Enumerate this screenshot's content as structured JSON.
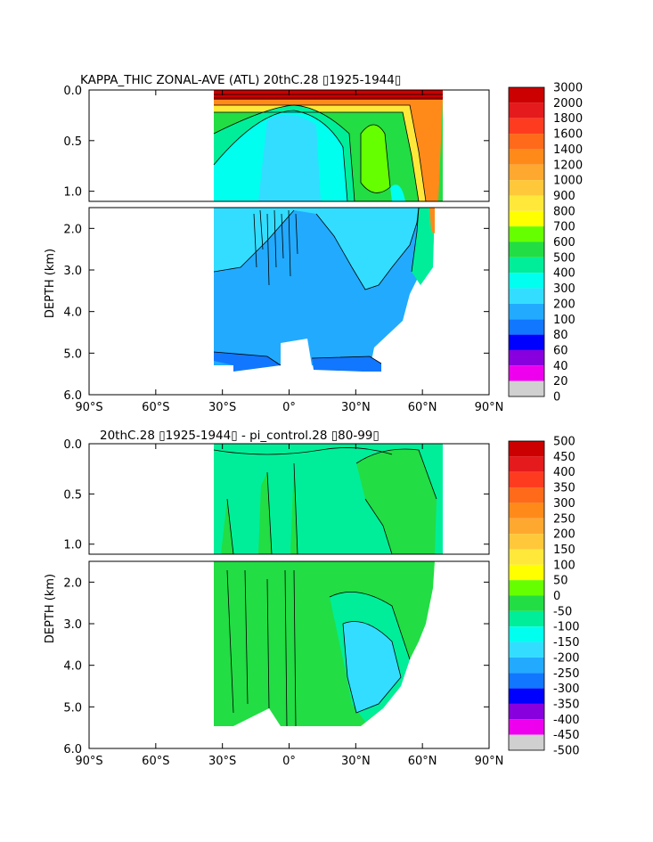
{
  "chart_data": [
    {
      "type": "heatmap",
      "title": "KAPPA_THIC ZONAL-AVE (ATL) 20thC.28 ▯1925-1944▯",
      "ylabel": "DEPTH (km)",
      "xlabel": "",
      "x_ticks": [
        "90°S",
        "60°S",
        "30°S",
        "0°",
        "30°N",
        "60°N",
        "90°N"
      ],
      "x_tick_values": [
        -90,
        -60,
        -30,
        0,
        30,
        60,
        90
      ],
      "y_ticks_upper": [
        "0.0",
        "0.5",
        "1.0"
      ],
      "y_ticks_lower": [
        "2.0",
        "3.0",
        "4.0",
        "5.0",
        "6.0"
      ],
      "xlim": [
        -90,
        90
      ],
      "ylim": [
        0,
        6
      ],
      "colorbar_labels": [
        "3000",
        "2000",
        "1800",
        "1600",
        "1400",
        "1200",
        "1000",
        "900",
        "800",
        "700",
        "600",
        "500",
        "400",
        "300",
        "200",
        "100",
        "80",
        "60",
        "40",
        "20",
        "0"
      ],
      "colorbar_colors": [
        "#cc0000",
        "#e41a1c",
        "#ff3b1f",
        "#ff6a1a",
        "#ff8a1a",
        "#ffa830",
        "#ffc83a",
        "#ffe83a",
        "#ffff00",
        "#66ff00",
        "#22dd44",
        "#00ee99",
        "#00ffee",
        "#33ddff",
        "#22aaff",
        "#1177ff",
        "#0000ff",
        "#8800dd",
        "#ee00ee",
        "#d0d0d0",
        "#808080"
      ]
    },
    {
      "type": "heatmap",
      "title": "20thC.28 ▯1925-1944▯ - pi_control.28 ▯80-99▯",
      "ylabel": "DEPTH (km)",
      "xlabel": "",
      "x_ticks": [
        "90°S",
        "60°S",
        "30°S",
        "0°",
        "30°N",
        "60°N",
        "90°N"
      ],
      "x_tick_values": [
        -90,
        -60,
        -30,
        0,
        30,
        60,
        90
      ],
      "y_ticks_upper": [
        "0.0",
        "0.5",
        "1.0"
      ],
      "y_ticks_lower": [
        "2.0",
        "3.0",
        "4.0",
        "5.0",
        "6.0"
      ],
      "xlim": [
        -90,
        90
      ],
      "ylim": [
        0,
        6
      ],
      "colorbar_labels": [
        "500",
        "450",
        "400",
        "350",
        "300",
        "250",
        "200",
        "150",
        "100",
        "50",
        "0",
        "-50",
        "-100",
        "-150",
        "-200",
        "-250",
        "-300",
        "-350",
        "-400",
        "-450",
        "-500"
      ],
      "colorbar_colors": [
        "#cc0000",
        "#e41a1c",
        "#ff3b1f",
        "#ff6a1a",
        "#ff8a1a",
        "#ffa830",
        "#ffc83a",
        "#ffe83a",
        "#ffff00",
        "#66ff00",
        "#22dd44",
        "#00ee99",
        "#00ffee",
        "#33ddff",
        "#22aaff",
        "#1177ff",
        "#0000ff",
        "#8800dd",
        "#ee00ee",
        "#d0d0d0",
        "#808080"
      ]
    }
  ]
}
